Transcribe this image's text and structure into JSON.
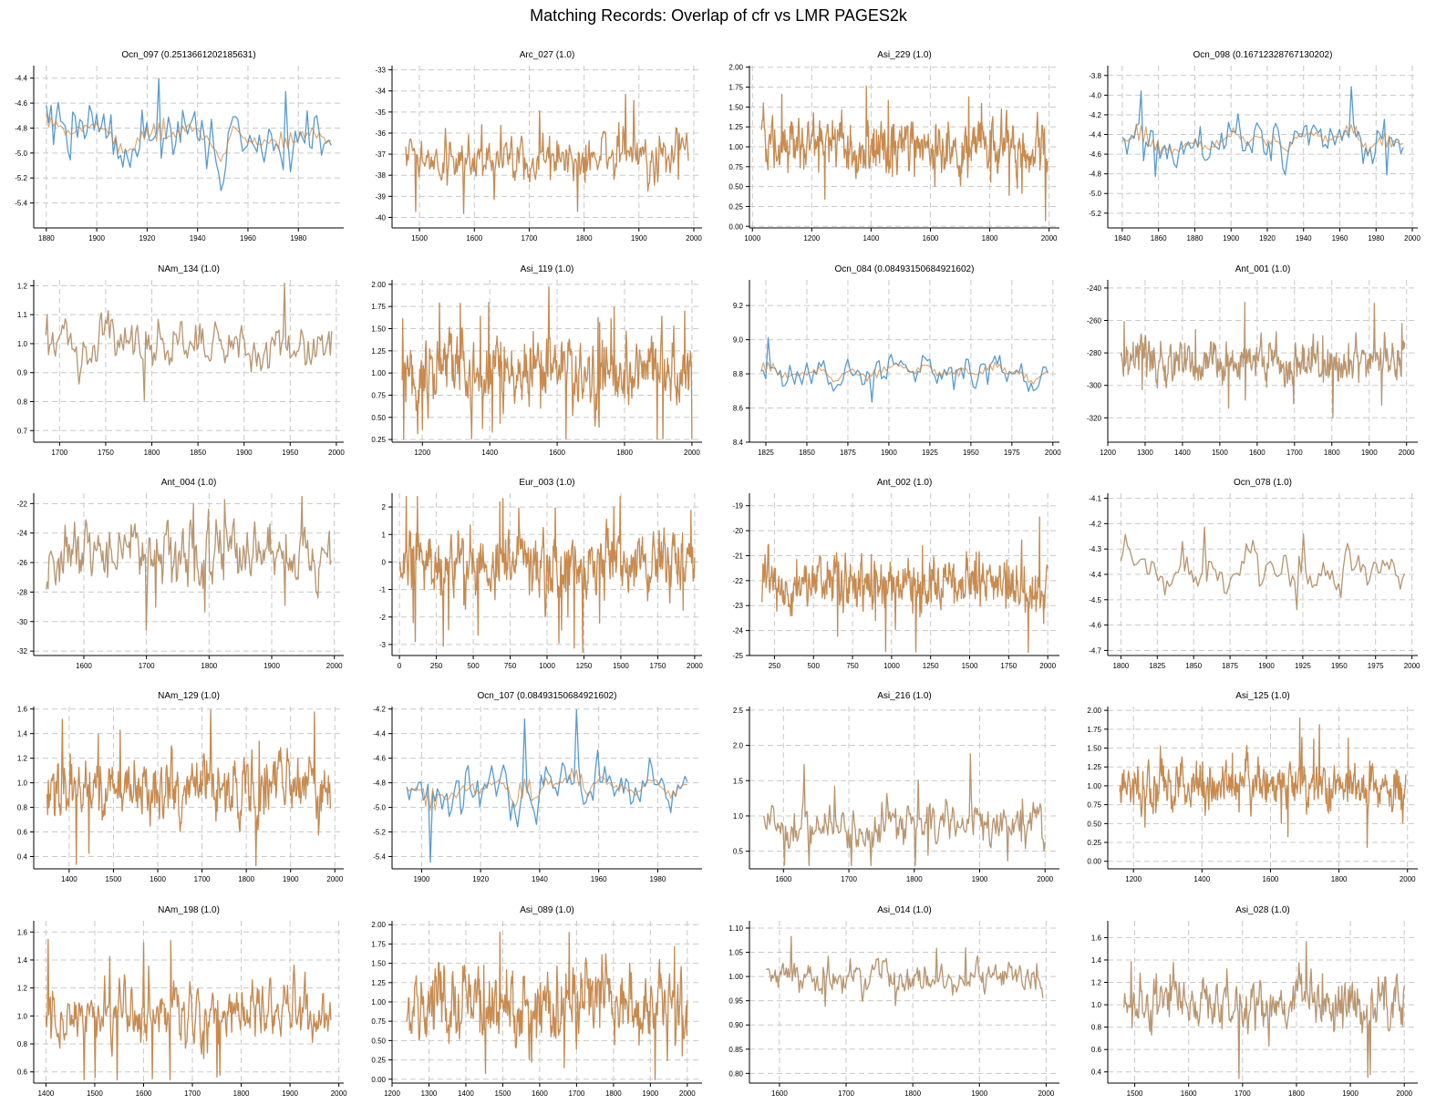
{
  "title": "Matching Records: Overlap of cfr vs LMR PAGES2k",
  "colors": {
    "cfr": "#4e96cc",
    "lmr": "#cd853f",
    "blend": "#b08c6c"
  },
  "chart_data": [
    {
      "type": "line",
      "title": "Ocn_097 (0.2513661202185631)",
      "x_range": [
        1880,
        1993
      ],
      "xlim": [
        1875,
        1998
      ],
      "ylim": [
        -5.6,
        -4.3
      ],
      "xticks": [
        1880,
        1900,
        1920,
        1940,
        1960,
        1980
      ],
      "yticks": [
        -5.4,
        -5.2,
        -5.0,
        -4.8,
        -4.6,
        -4.4
      ],
      "ytick_labels": [
        "-5.4",
        "-5.2",
        "-5.0",
        "-4.8",
        "-4.6",
        "-4.4"
      ],
      "mean": -4.85,
      "amp": 0.22,
      "mode": "both",
      "seed": 1
    },
    {
      "type": "line",
      "title": "Arc_027 (1.0)",
      "x_range": [
        1475,
        1990
      ],
      "xlim": [
        1450,
        2015
      ],
      "ylim": [
        -40.5,
        -32.8
      ],
      "xticks": [
        1500,
        1600,
        1700,
        1800,
        1900,
        2000
      ],
      "yticks": [
        -40,
        -39,
        -38,
        -37,
        -36,
        -35,
        -34,
        -33
      ],
      "ytick_labels": [
        "-40",
        "-39",
        "-38",
        "-37",
        "-36",
        "-35",
        "-34",
        "-33"
      ],
      "mean": -37.1,
      "amp": 1.0,
      "mode": "lmr",
      "seed": 2
    },
    {
      "type": "line",
      "title": "Asi_229 (1.0)",
      "x_range": [
        1030,
        1995
      ],
      "xlim": [
        990,
        2035
      ],
      "ylim": [
        -0.02,
        2.02
      ],
      "xticks": [
        1000,
        1200,
        1400,
        1600,
        1800,
        2000
      ],
      "yticks": [
        0,
        0.25,
        0.5,
        0.75,
        1.0,
        1.25,
        1.5,
        1.75,
        2.0
      ],
      "ytick_labels": [
        "0.00",
        "0.25",
        "0.50",
        "0.75",
        "1.00",
        "1.25",
        "1.50",
        "1.75",
        "2.00"
      ],
      "mean": 1.0,
      "amp": 0.3,
      "mode": "lmr",
      "seed": 3
    },
    {
      "type": "line",
      "title": "Ocn_098 (0.16712328767130202)",
      "x_range": [
        1840,
        1995
      ],
      "xlim": [
        1832,
        2003
      ],
      "ylim": [
        -5.35,
        -3.7
      ],
      "xticks": [
        1840,
        1860,
        1880,
        1900,
        1920,
        1940,
        1960,
        1980,
        2000
      ],
      "yticks": [
        -5.2,
        -5.0,
        -4.8,
        -4.6,
        -4.4,
        -4.2,
        -4.0,
        -3.8
      ],
      "ytick_labels": [
        "-5.2",
        "-5.0",
        "-4.8",
        "-4.6",
        "-4.4",
        "-4.2",
        "-4.0",
        "-3.8"
      ],
      "mean": -4.45,
      "amp": 0.22,
      "mode": "both",
      "seed": 4
    },
    {
      "type": "line",
      "title": "NAm_134 (1.0)",
      "x_range": [
        1685,
        1995
      ],
      "xlim": [
        1672,
        2008
      ],
      "ylim": [
        0.66,
        1.22
      ],
      "xticks": [
        1700,
        1750,
        1800,
        1850,
        1900,
        1950,
        2000
      ],
      "yticks": [
        0.7,
        0.8,
        0.9,
        1.0,
        1.1,
        1.2
      ],
      "ytick_labels": [
        "0.7",
        "0.8",
        "0.9",
        "1.0",
        "1.1",
        "1.2"
      ],
      "mean": 1.0,
      "amp": 0.08,
      "mode": "blend",
      "seed": 5
    },
    {
      "type": "line",
      "title": "Asi_119 (1.0)",
      "x_range": [
        1140,
        2000
      ],
      "xlim": [
        1110,
        2030
      ],
      "ylim": [
        0.22,
        2.05
      ],
      "xticks": [
        1200,
        1400,
        1600,
        1800,
        2000
      ],
      "yticks": [
        0.25,
        0.5,
        0.75,
        1.0,
        1.25,
        1.5,
        1.75,
        2.0
      ],
      "ytick_labels": [
        "0.25",
        "0.50",
        "0.75",
        "1.00",
        "1.25",
        "1.50",
        "1.75",
        "2.00"
      ],
      "mean": 1.0,
      "amp": 0.35,
      "mode": "lmr",
      "seed": 6
    },
    {
      "type": "line",
      "title": "Ocn_084 (0.08493150684921602)",
      "x_range": [
        1822,
        1997
      ],
      "xlim": [
        1815,
        2004
      ],
      "ylim": [
        8.4,
        9.35
      ],
      "xticks": [
        1825,
        1850,
        1875,
        1900,
        1925,
        1950,
        1975,
        2000
      ],
      "yticks": [
        8.4,
        8.6,
        8.8,
        9.0,
        9.2
      ],
      "ytick_labels": [
        "8.4",
        "8.6",
        "8.8",
        "9.0",
        "9.2"
      ],
      "mean": 8.82,
      "amp": 0.1,
      "mode": "both",
      "seed": 7
    },
    {
      "type": "line",
      "title": "Ant_001 (1.0)",
      "x_range": [
        1235,
        1995
      ],
      "xlim": [
        1200,
        2030
      ],
      "ylim": [
        -335,
        -235
      ],
      "xticks": [
        1200,
        1300,
        1400,
        1500,
        1600,
        1700,
        1800,
        1900,
        2000
      ],
      "yticks": [
        -320,
        -300,
        -280,
        -260,
        -240
      ],
      "ytick_labels": [
        "-320",
        "-300",
        "-280",
        "-260",
        "-240"
      ],
      "mean": -285,
      "amp": 12,
      "mode": "blend",
      "seed": 8
    },
    {
      "type": "line",
      "title": "Ant_004 (1.0)",
      "x_range": [
        1540,
        1995
      ],
      "xlim": [
        1520,
        2015
      ],
      "ylim": [
        -32.3,
        -21.3
      ],
      "xticks": [
        1600,
        1700,
        1800,
        1900,
        2000
      ],
      "yticks": [
        -32,
        -30,
        -28,
        -26,
        -24,
        -22
      ],
      "ytick_labels": [
        "-32",
        "-30",
        "-28",
        "-26",
        "-24",
        "-22"
      ],
      "mean": -25.5,
      "amp": 2.0,
      "mode": "blend",
      "seed": 9
    },
    {
      "type": "line",
      "title": "Eur_003 (1.0)",
      "x_range": [
        0,
        2000
      ],
      "xlim": [
        -50,
        2050
      ],
      "ylim": [
        -3.4,
        2.5
      ],
      "xticks": [
        0,
        250,
        500,
        750,
        1000,
        1250,
        1500,
        1750,
        2000
      ],
      "yticks": [
        -3,
        -2,
        -1,
        0,
        1,
        2
      ],
      "ytick_labels": [
        "-3",
        "-2",
        "-1",
        "0",
        "1",
        "2"
      ],
      "mean": 0.0,
      "amp": 1.0,
      "mode": "lmr",
      "seed": 10
    },
    {
      "type": "line",
      "title": "Ant_002 (1.0)",
      "x_range": [
        170,
        2000
      ],
      "xlim": [
        90,
        2075
      ],
      "ylim": [
        -25,
        -18.5
      ],
      "xticks": [
        250,
        500,
        750,
        1000,
        1250,
        1500,
        1750,
        2000
      ],
      "yticks": [
        -25,
        -24,
        -23,
        -22,
        -21,
        -20,
        -19
      ],
      "ytick_labels": [
        "-25",
        "-24",
        "-23",
        "-22",
        "-21",
        "-20",
        "-19"
      ],
      "mean": -22.2,
      "amp": 1.0,
      "mode": "lmr",
      "seed": 11
    },
    {
      "type": "line",
      "title": "Ocn_078 (1.0)",
      "x_range": [
        1800,
        1995
      ],
      "xlim": [
        1791,
        2004
      ],
      "ylim": [
        -4.72,
        -4.08
      ],
      "xticks": [
        1800,
        1825,
        1850,
        1875,
        1900,
        1925,
        1950,
        1975,
        2000
      ],
      "yticks": [
        -4.7,
        -4.6,
        -4.5,
        -4.4,
        -4.3,
        -4.2,
        -4.1
      ],
      "ytick_labels": [
        "-4.7",
        "-4.6",
        "-4.5",
        "-4.4",
        "-4.3",
        "-4.2",
        "-4.1"
      ],
      "mean": -4.38,
      "amp": 0.08,
      "mode": "blend",
      "seed": 12
    },
    {
      "type": "line",
      "title": "NAm_129 (1.0)",
      "x_range": [
        1350,
        1990
      ],
      "xlim": [
        1320,
        2020
      ],
      "ylim": [
        0.3,
        1.62
      ],
      "xticks": [
        1400,
        1500,
        1600,
        1700,
        1800,
        1900,
        2000
      ],
      "yticks": [
        0.4,
        0.6,
        0.8,
        1.0,
        1.2,
        1.4,
        1.6
      ],
      "ytick_labels": [
        "0.4",
        "0.6",
        "0.8",
        "1.0",
        "1.2",
        "1.4",
        "1.6"
      ],
      "mean": 0.95,
      "amp": 0.25,
      "mode": "lmr",
      "seed": 13
    },
    {
      "type": "line",
      "title": "Ocn_107 (0.08493150684921602)",
      "x_range": [
        1895,
        1990
      ],
      "xlim": [
        1890,
        1995
      ],
      "ylim": [
        -5.5,
        -4.18
      ],
      "xticks": [
        1900,
        1920,
        1940,
        1960,
        1980
      ],
      "yticks": [
        -5.4,
        -5.2,
        -5.0,
        -4.8,
        -4.6,
        -4.4,
        -4.2
      ],
      "ytick_labels": [
        "-5.4",
        "-5.2",
        "-5.0",
        "-4.8",
        "-4.6",
        "-4.4",
        "-4.2"
      ],
      "mean": -4.85,
      "amp": 0.22,
      "mode": "both",
      "seed": 14
    },
    {
      "type": "line",
      "title": "Asi_216 (1.0)",
      "x_range": [
        1570,
        2000
      ],
      "xlim": [
        1548,
        2022
      ],
      "ylim": [
        0.25,
        2.55
      ],
      "xticks": [
        1600,
        1700,
        1800,
        1900,
        2000
      ],
      "yticks": [
        0.5,
        1.0,
        1.5,
        2.0,
        2.5
      ],
      "ytick_labels": [
        "0.5",
        "1.0",
        "1.5",
        "2.0",
        "2.5"
      ],
      "mean": 0.9,
      "amp": 0.3,
      "mode": "blend",
      "seed": 15
    },
    {
      "type": "line",
      "title": "Asi_125 (1.0)",
      "x_range": [
        1160,
        1995
      ],
      "xlim": [
        1125,
        2030
      ],
      "ylim": [
        -0.1,
        2.05
      ],
      "xticks": [
        1200,
        1400,
        1600,
        1800,
        2000
      ],
      "yticks": [
        0,
        0.25,
        0.5,
        0.75,
        1.0,
        1.25,
        1.5,
        1.75,
        2.0
      ],
      "ytick_labels": [
        "0.00",
        "0.25",
        "0.50",
        "0.75",
        "1.00",
        "1.25",
        "1.50",
        "1.75",
        "2.00"
      ],
      "mean": 1.0,
      "amp": 0.3,
      "mode": "lmr",
      "seed": 16
    },
    {
      "type": "line",
      "title": "NAm_198 (1.0)",
      "x_range": [
        1400,
        1985
      ],
      "xlim": [
        1375,
        2010
      ],
      "ylim": [
        0.52,
        1.68
      ],
      "xticks": [
        1400,
        1500,
        1600,
        1700,
        1800,
        1900,
        2000
      ],
      "yticks": [
        0.6,
        0.8,
        1.0,
        1.2,
        1.4,
        1.6
      ],
      "ytick_labels": [
        "0.6",
        "0.8",
        "1.0",
        "1.2",
        "1.4",
        "1.6"
      ],
      "mean": 1.0,
      "amp": 0.2,
      "mode": "lmr",
      "seed": 17
    },
    {
      "type": "line",
      "title": "Asi_089 (1.0)",
      "x_range": [
        1240,
        2000
      ],
      "xlim": [
        1200,
        2040
      ],
      "ylim": [
        -0.05,
        2.05
      ],
      "xticks": [
        1200,
        1300,
        1400,
        1500,
        1600,
        1700,
        1800,
        1900,
        2000
      ],
      "yticks": [
        0,
        0.25,
        0.5,
        0.75,
        1.0,
        1.25,
        1.5,
        1.75,
        2.0
      ],
      "ytick_labels": [
        "0.00",
        "0.25",
        "0.50",
        "0.75",
        "1.00",
        "1.25",
        "1.50",
        "1.75",
        "2.00"
      ],
      "mean": 1.0,
      "amp": 0.42,
      "mode": "lmr",
      "seed": 18
    },
    {
      "type": "line",
      "title": "Asi_014 (1.0)",
      "x_range": [
        1580,
        1995
      ],
      "xlim": [
        1555,
        2020
      ],
      "ylim": [
        0.78,
        1.115
      ],
      "xticks": [
        1600,
        1700,
        1800,
        1900,
        2000
      ],
      "yticks": [
        0.8,
        0.85,
        0.9,
        0.95,
        1.0,
        1.05,
        1.1
      ],
      "ytick_labels": [
        "0.80",
        "0.85",
        "0.90",
        "0.95",
        "1.00",
        "1.05",
        "1.10"
      ],
      "mean": 1.0,
      "amp": 0.03,
      "mode": "blend",
      "seed": 19
    },
    {
      "type": "line",
      "title": "Asi_028 (1.0)",
      "x_range": [
        1480,
        2000
      ],
      "xlim": [
        1450,
        2025
      ],
      "ylim": [
        0.3,
        1.75
      ],
      "xticks": [
        1500,
        1600,
        1700,
        1800,
        1900,
        2000
      ],
      "yticks": [
        0.4,
        0.6,
        0.8,
        1.0,
        1.2,
        1.4,
        1.6
      ],
      "ytick_labels": [
        "0.4",
        "0.6",
        "0.8",
        "1.0",
        "1.2",
        "1.4",
        "1.6"
      ],
      "mean": 1.0,
      "amp": 0.22,
      "mode": "blend",
      "seed": 20
    }
  ]
}
